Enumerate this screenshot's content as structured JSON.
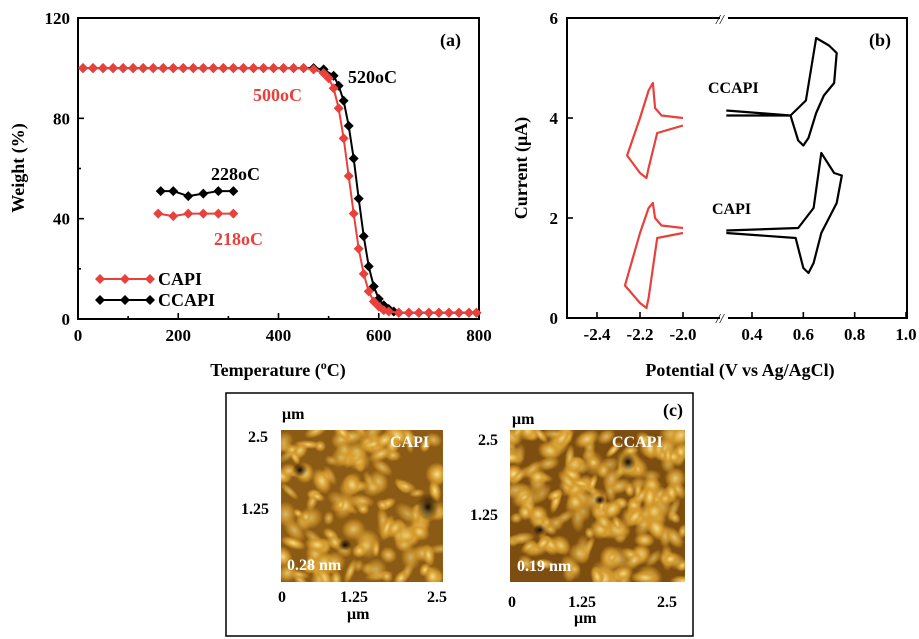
{
  "colors": {
    "capi": "#e8413c",
    "ccapi": "#000000",
    "afm_dark": "#2a1404",
    "afm_mid": "#8b5a14",
    "afm_light": "#f6d372"
  },
  "chart_data": [
    {
      "type": "line",
      "panel": "(a)",
      "xlabel": "Temperature (oC)",
      "ylabel": "Weight (%)",
      "xlim": [
        0,
        800
      ],
      "ylim": [
        0,
        120
      ],
      "xticks": [
        "0",
        "200",
        "400",
        "600",
        "800"
      ],
      "yticks": [
        "0",
        "40",
        "80",
        "120"
      ],
      "legend": {
        "placement": "bottom-left",
        "entries": [
          "CAPI",
          "CCAPI"
        ]
      },
      "annotations": {
        "capi_td": "500oC",
        "ccapi_td": "520oC",
        "capi_tg": "218oC",
        "ccapi_tg": "228oC"
      },
      "series": [
        {
          "name": "CAPI",
          "color": "#e8413c",
          "x": [
            10,
            30,
            50,
            70,
            90,
            110,
            130,
            150,
            170,
            190,
            210,
            230,
            250,
            270,
            290,
            310,
            330,
            350,
            370,
            390,
            410,
            430,
            450,
            470,
            490,
            500,
            510,
            520,
            530,
            540,
            550,
            560,
            570,
            580,
            590,
            600,
            610,
            620,
            640,
            660,
            680,
            700,
            720,
            740,
            760,
            780,
            795
          ],
          "y": [
            100,
            100,
            100,
            100,
            100,
            100,
            100,
            100,
            100,
            100,
            100,
            100,
            100,
            100,
            100,
            100,
            100,
            100,
            100,
            100,
            100,
            100,
            100,
            99.5,
            98,
            96,
            92,
            84,
            72,
            57,
            42,
            28,
            18,
            11,
            7,
            5,
            3.5,
            3,
            2.5,
            2.5,
            2.5,
            2.5,
            2.5,
            2.5,
            2.5,
            2.5,
            2.5
          ]
        },
        {
          "name": "CCAPI",
          "color": "#000000",
          "x": [
            10,
            30,
            50,
            70,
            90,
            110,
            130,
            150,
            170,
            190,
            210,
            230,
            250,
            270,
            290,
            310,
            330,
            350,
            370,
            390,
            410,
            430,
            450,
            470,
            490,
            510,
            520,
            530,
            540,
            550,
            560,
            570,
            580,
            590,
            600,
            610,
            620,
            630,
            640,
            660,
            680,
            700,
            720,
            740,
            760,
            780,
            795
          ],
          "y": [
            100,
            100,
            100,
            100,
            100,
            100,
            100,
            100,
            100,
            100,
            100,
            100,
            100,
            100,
            100,
            100,
            100,
            100,
            100,
            100,
            100,
            100,
            100,
            100,
            99.5,
            97,
            93,
            87,
            77,
            64,
            48,
            33,
            21,
            13,
            8,
            5.5,
            4,
            3,
            2.5,
            2.5,
            2.5,
            2.5,
            2.5,
            2.5,
            2.5,
            2.5,
            2.5
          ]
        },
        {
          "name": "CAPI-tg",
          "color": "#e8413c",
          "x": [
            160,
            190,
            220,
            250,
            280,
            310
          ],
          "y": [
            42,
            41,
            42,
            42,
            42,
            42
          ]
        },
        {
          "name": "CCAPI-tg",
          "color": "#000000",
          "x": [
            165,
            190,
            220,
            250,
            280,
            310
          ],
          "y": [
            51,
            51,
            49,
            50,
            51,
            51
          ]
        }
      ]
    },
    {
      "type": "line",
      "panel": "(b)",
      "xlabel": "Potential (V vs Ag/AgCl)",
      "ylabel": "Current (μA)",
      "ylim": [
        0,
        6
      ],
      "xticks": [
        "-2.4",
        "-2.2",
        "-2.0",
        "0.4",
        "0.6",
        "0.8",
        "1.0"
      ],
      "yticks": [
        "0",
        "2",
        "4",
        "6"
      ],
      "annotations": {
        "upper": "CCAPI",
        "lower": "CAPI"
      },
      "series": [
        {
          "name": "CCAPI-neg",
          "color": "#e8413c",
          "x": [
            -2.0,
            -2.1,
            -2.13,
            -2.14,
            -2.16,
            -2.2,
            -2.26,
            -2.2,
            -2.17,
            -2.16,
            -2.12,
            -2.0
          ],
          "y": [
            4.0,
            4.05,
            4.2,
            4.7,
            4.55,
            4.0,
            3.25,
            2.9,
            2.8,
            3.0,
            3.7,
            3.85
          ]
        },
        {
          "name": "CCAPI-pos",
          "color": "#000000",
          "x": [
            0.3,
            0.55,
            0.61,
            0.65,
            0.7,
            0.73,
            0.72,
            0.68,
            0.65,
            0.62,
            0.6,
            0.58,
            0.55,
            0.3
          ],
          "y": [
            4.05,
            4.05,
            4.35,
            5.6,
            5.45,
            5.3,
            4.7,
            4.45,
            4.1,
            3.6,
            3.45,
            3.55,
            4.05,
            4.15
          ]
        },
        {
          "name": "CAPI-neg",
          "color": "#e8413c",
          "x": [
            -2.0,
            -2.1,
            -2.13,
            -2.14,
            -2.16,
            -2.2,
            -2.27,
            -2.2,
            -2.17,
            -2.16,
            -2.12,
            -2.0
          ],
          "y": [
            1.8,
            1.85,
            2.0,
            2.3,
            2.2,
            1.7,
            0.65,
            0.3,
            0.2,
            0.4,
            1.6,
            1.7
          ]
        },
        {
          "name": "CAPI-pos",
          "color": "#000000",
          "x": [
            0.3,
            0.58,
            0.64,
            0.67,
            0.72,
            0.75,
            0.73,
            0.7,
            0.67,
            0.64,
            0.62,
            0.6,
            0.57,
            0.3
          ],
          "y": [
            1.75,
            1.8,
            2.2,
            3.3,
            2.9,
            2.85,
            2.3,
            2.0,
            1.7,
            1.1,
            0.9,
            1.0,
            1.6,
            1.7
          ]
        }
      ]
    }
  ],
  "panel_c": {
    "label": "(c)",
    "images": [
      {
        "name": "CAPI",
        "roughness": "0.28 nm",
        "unit": "μm",
        "yticks": [
          "2.5",
          "1.25"
        ],
        "xticks": [
          "0",
          "1.25",
          "2.5"
        ]
      },
      {
        "name": "CCAPI",
        "roughness": "0.19 nm",
        "unit": "μm",
        "yticks": [
          "2.5",
          "1.25"
        ],
        "xticks": [
          "0",
          "1.25",
          "2.5"
        ]
      }
    ]
  }
}
